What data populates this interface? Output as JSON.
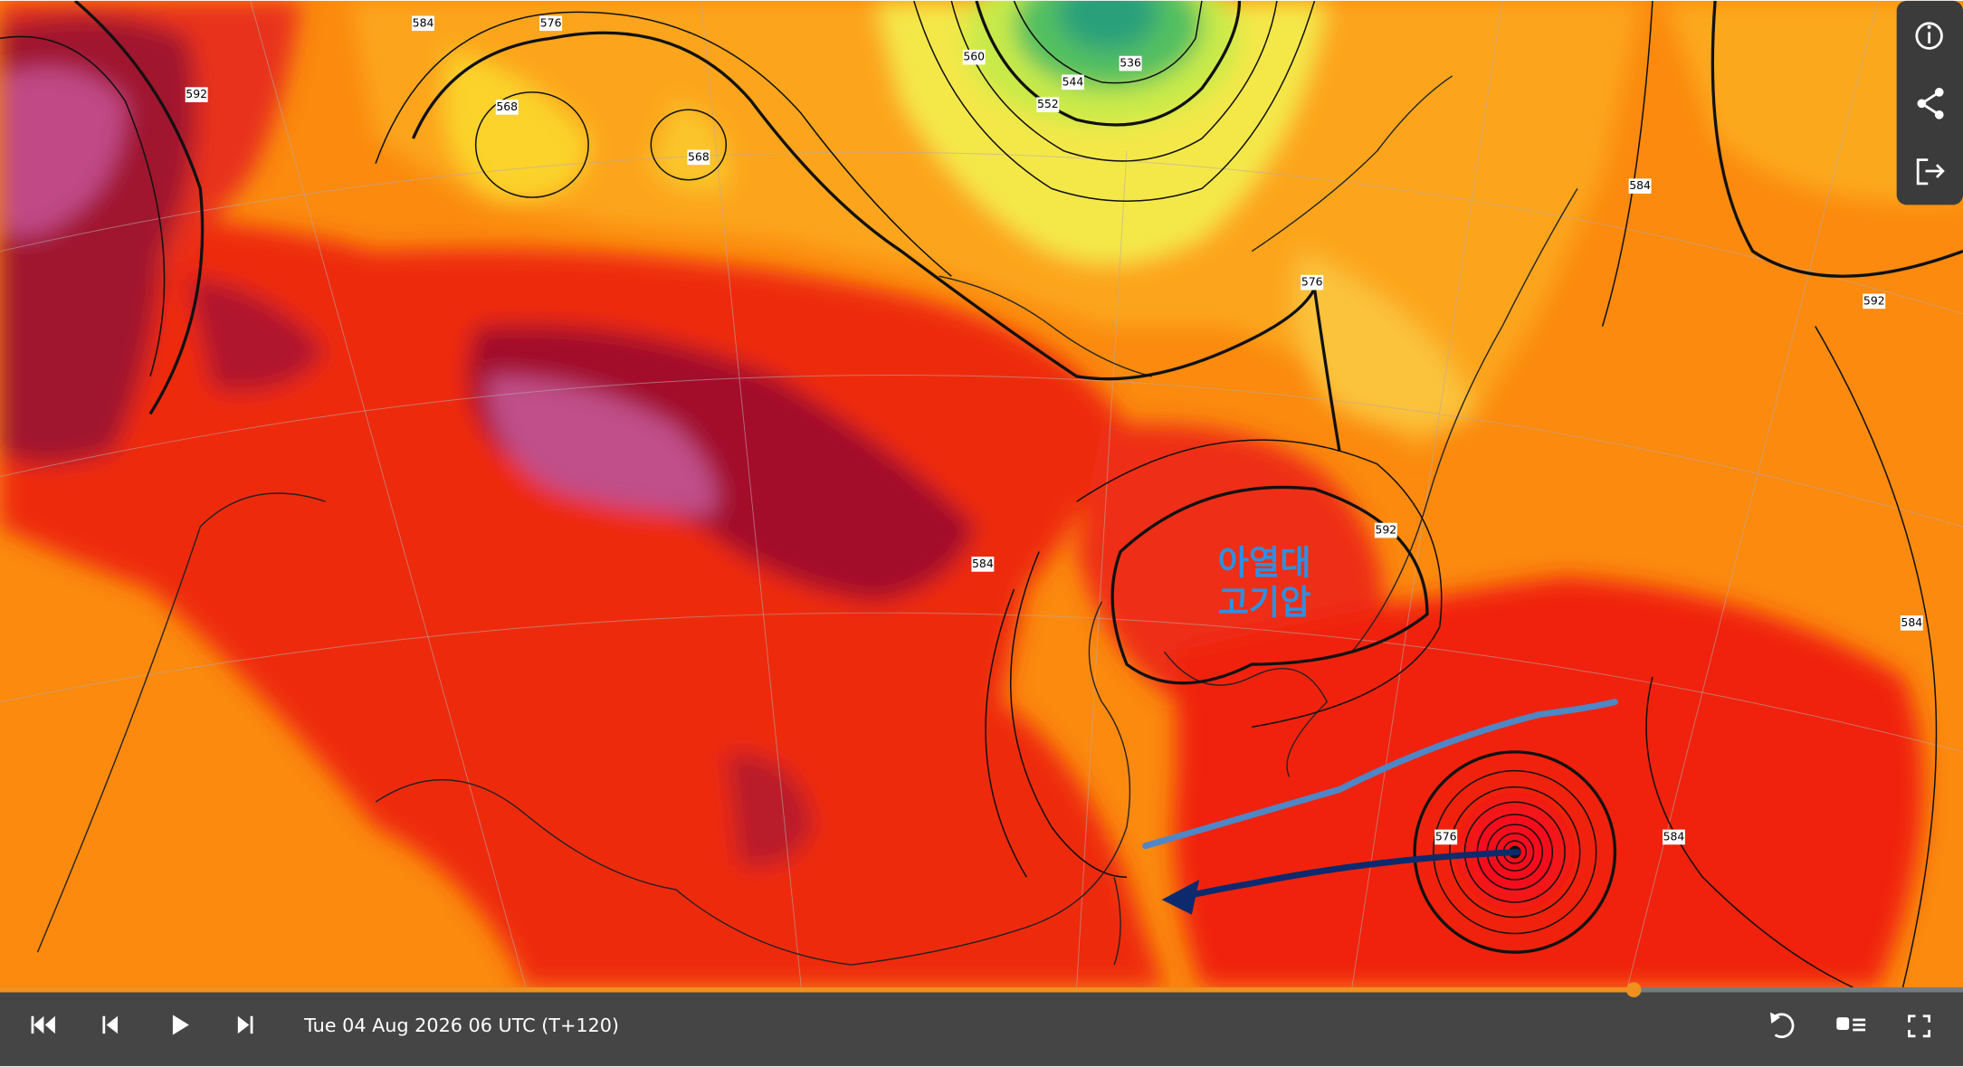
{
  "annotation": {
    "line1": "아열대",
    "line2": "고기압"
  },
  "player": {
    "timestamp": "Tue 04 Aug 2026 06 UTC (T+120)"
  },
  "contour_labels": [
    576,
    568,
    568,
    584,
    592,
    560,
    552,
    544,
    536,
    584,
    576,
    592,
    592,
    584,
    584,
    576,
    584
  ]
}
